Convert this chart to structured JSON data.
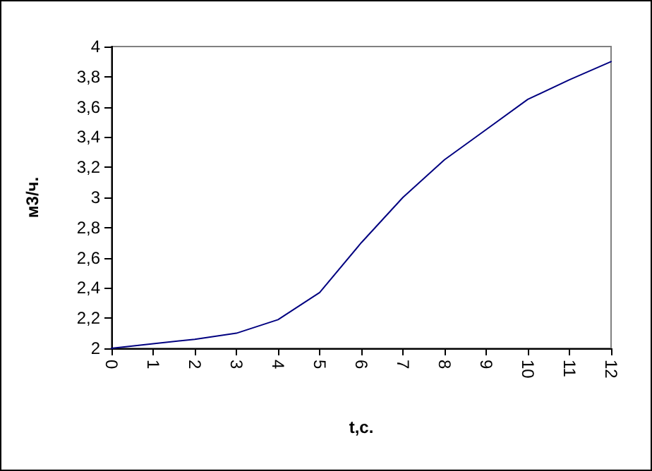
{
  "chart_data": {
    "type": "line",
    "xlabel": "t,с.",
    "ylabel": "м3/ч.",
    "categories": [
      "0",
      "1",
      "2",
      "3",
      "4",
      "5",
      "6",
      "7",
      "8",
      "9",
      "10",
      "11",
      "12"
    ],
    "series": [
      {
        "color": "#000080",
        "values": [
          2.0,
          2.03,
          2.06,
          2.1,
          2.19,
          2.37,
          2.7,
          3.0,
          3.25,
          3.45,
          3.65,
          3.78,
          3.9
        ]
      }
    ],
    "ylim": [
      2,
      4
    ],
    "yticks": [
      2,
      {
        "value": 2.2,
        "label": "2,2"
      },
      {
        "value": 2.4,
        "label": "2,4"
      },
      {
        "value": 2.6,
        "label": "2,6"
      },
      {
        "value": 2.8,
        "label": "2,8"
      },
      3,
      {
        "value": 3.2,
        "label": "3,2"
      },
      {
        "value": 3.4,
        "label": "3,4"
      },
      {
        "value": 3.6,
        "label": "3,6"
      },
      {
        "value": 3.8,
        "label": "3,8"
      },
      4
    ],
    "grid": false,
    "marker": "none",
    "line_style": "solid"
  }
}
